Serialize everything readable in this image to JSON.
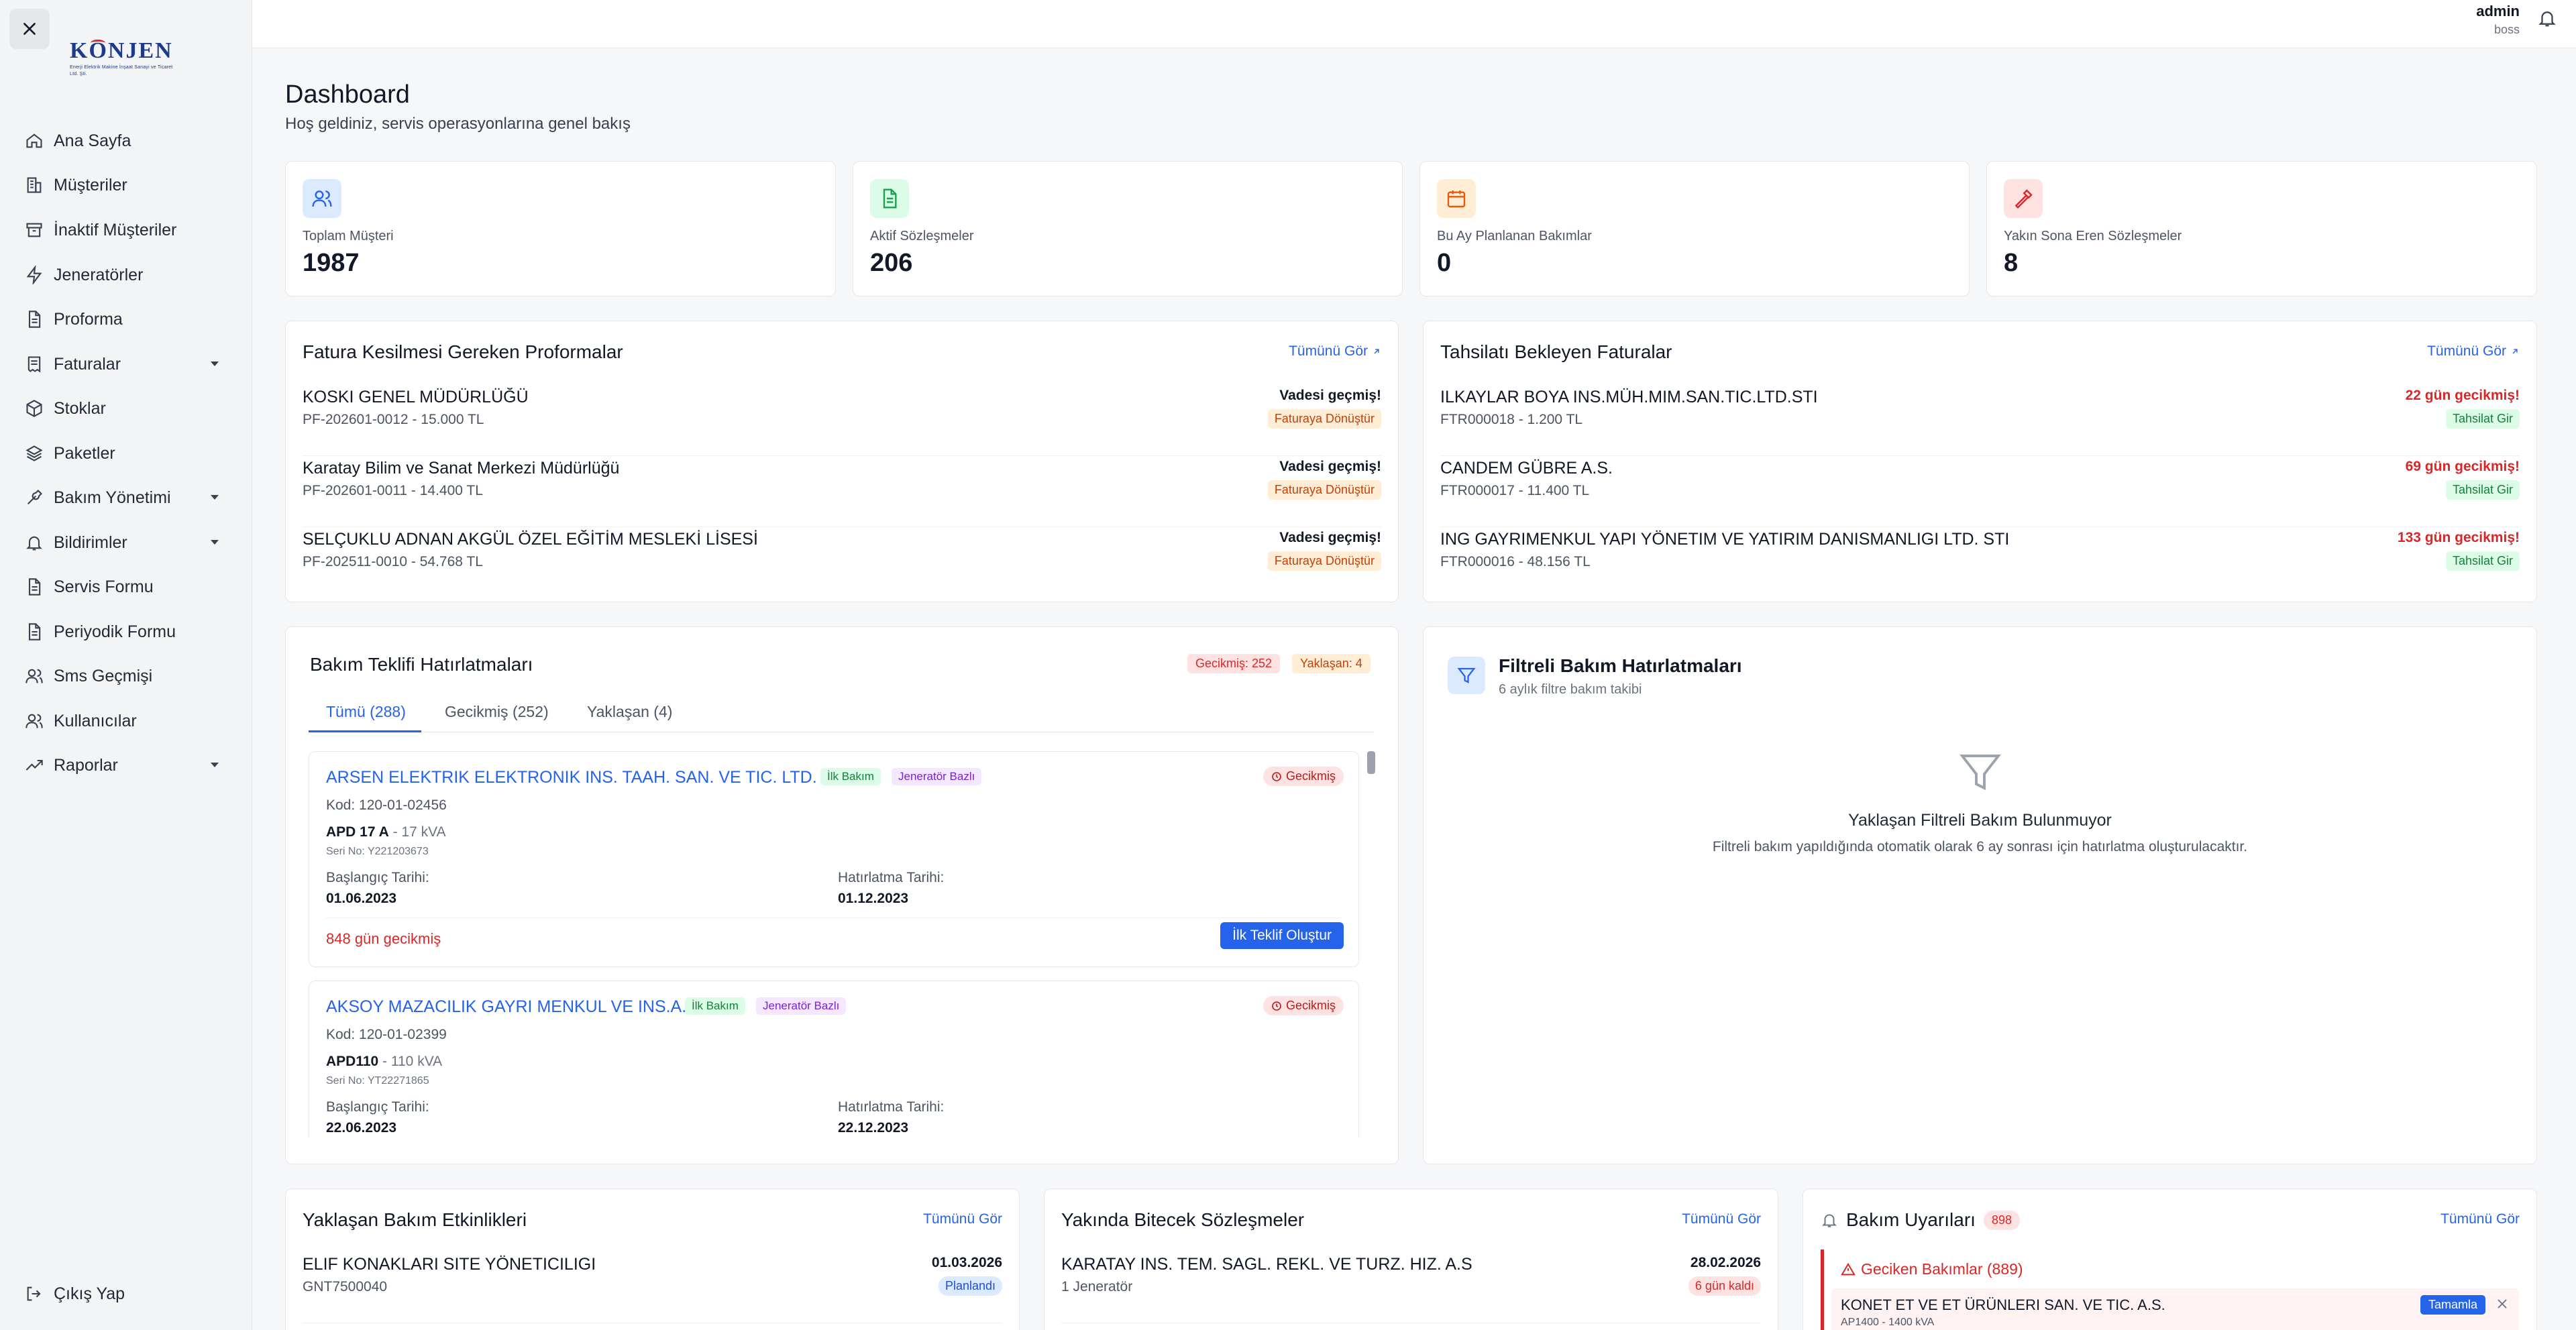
{
  "app": {
    "logo_text": "KONJEN",
    "logo_subtitle": "Enerji Elektrik Makine İnşaat Sanayi ve Ticaret Ltd. Şti."
  },
  "sidebar": {
    "items": [
      {
        "label": "Ana Sayfa",
        "icon": "home-icon"
      },
      {
        "label": "Müşteriler",
        "icon": "building-icon"
      },
      {
        "label": "İnaktif Müşteriler",
        "icon": "archive-icon"
      },
      {
        "label": "Jeneratörler",
        "icon": "bolt-icon"
      },
      {
        "label": "Proforma",
        "icon": "file-icon"
      },
      {
        "label": "Faturalar",
        "icon": "receipt-icon",
        "has_submenu": true
      },
      {
        "label": "Stoklar",
        "icon": "box-icon"
      },
      {
        "label": "Paketler",
        "icon": "layers-icon"
      },
      {
        "label": "Bakım Yönetimi",
        "icon": "wrench-icon",
        "has_submenu": true
      },
      {
        "label": "Bildirimler",
        "icon": "bell-icon",
        "has_submenu": true
      },
      {
        "label": "Servis Formu",
        "icon": "file-icon"
      },
      {
        "label": "Periyodik Formu",
        "icon": "file-icon"
      },
      {
        "label": "Sms Geçmişi",
        "icon": "users-icon"
      },
      {
        "label": "Kullanıcılar",
        "icon": "users-icon"
      },
      {
        "label": "Raporlar",
        "icon": "trend-icon",
        "has_submenu": true
      }
    ],
    "logout_label": "Çıkış Yap"
  },
  "header": {
    "user_name": "admin",
    "user_role": "boss"
  },
  "page": {
    "title": "Dashboard",
    "subtitle": "Hoş geldiniz, servis operasyonlarına genel bakış"
  },
  "stats": [
    {
      "label": "Toplam Müşteri",
      "value": "1987",
      "icon": "users-icon",
      "color": "#2563eb",
      "bg": "#dbeafe"
    },
    {
      "label": "Aktif Sözleşmeler",
      "value": "206",
      "icon": "document-icon",
      "color": "#16a34a",
      "bg": "#dcfce7"
    },
    {
      "label": "Bu Ay Planlanan Bakımlar",
      "value": "0",
      "icon": "calendar-icon",
      "color": "#ea580c",
      "bg": "#ffedd5"
    },
    {
      "label": "Yakın Sona Eren Sözleşmeler",
      "value": "8",
      "icon": "hammer-icon",
      "color": "#dc2626",
      "bg": "#fee2e2"
    }
  ],
  "proformas": {
    "title": "Fatura Kesilmesi Gereken Proformalar",
    "view_all": "Tümünü Gör",
    "rows": [
      {
        "name": "KOSKI GENEL MÜDÜRLÜĞÜ",
        "sub": "PF-202601-0012 - 15.000 TL",
        "status": "Vadesi geçmiş!",
        "badge": "Faturaya Dönüştür"
      },
      {
        "name": "Karatay Bilim ve Sanat Merkezi Müdürlüğü",
        "sub": "PF-202601-0011 - 14.400 TL",
        "status": "Vadesi geçmiş!",
        "badge": "Faturaya Dönüştür"
      },
      {
        "name": "SELÇUKLU ADNAN AKGÜL ÖZEL EĞİTİM MESLEKİ LİSESİ",
        "sub": "PF-202511-0010 - 54.768 TL",
        "status": "Vadesi geçmiş!",
        "badge": "Faturaya Dönüştür"
      }
    ]
  },
  "invoices": {
    "title": "Tahsilatı Bekleyen Faturalar",
    "view_all": "Tümünü Gör",
    "rows": [
      {
        "name": "ILKAYLAR BOYA INS.MÜH.MIM.SAN.TIC.LTD.STI",
        "sub": "FTR000018 - 1.200 TL",
        "status": "22 gün gecikmiş!",
        "badge": "Tahsilat Gir"
      },
      {
        "name": "CANDEM GÜBRE A.S.",
        "sub": "FTR000017 - 11.400 TL",
        "status": "69 gün gecikmiş!",
        "badge": "Tahsilat Gir"
      },
      {
        "name": "ING GAYRIMENKUL YAPI YÖNETIM VE YATIRIM DANISMANLIGI LTD. STI",
        "sub": "FTR000016 - 48.156 TL",
        "status": "133 gün gecikmiş!",
        "badge": "Tahsilat Gir"
      }
    ]
  },
  "reminders": {
    "title": "Bakım Teklifi Hatırlatmaları",
    "overdue_badge": "Gecikmiş: 252",
    "upcoming_badge": "Yaklaşan: 4",
    "tabs": [
      "Tümü (288)",
      "Gecikmiş (252)",
      "Yaklaşan (4)"
    ],
    "cards": [
      {
        "name": "ARSEN ELEKTRIK ELEKTRONIK INS. TAAH. SAN. VE TIC. LTD. STI",
        "tag1": "İlk Bakım",
        "tag2": "Jeneratör Bazlı",
        "status": "Gecikmiş",
        "code": "Kod: 120-01-02456",
        "model": "APD 17 A",
        "power": " - 17 kVA",
        "serial": "Seri No: Y221203673",
        "start_label": "Başlangıç Tarihi:",
        "start_value": "01.06.2023",
        "remind_label": "Hatırlatma Tarihi:",
        "remind_value": "01.12.2023",
        "overdue": "848 gün gecikmiş",
        "action": "İlk Teklif Oluştur"
      },
      {
        "name": "AKSOY MAZACILIK GAYRI MENKUL VE INS.A.S",
        "tag1": "İlk Bakım",
        "tag2": "Jeneratör Bazlı",
        "status": "Gecikmiş",
        "code": "Kod: 120-01-02399",
        "model": "APD110",
        "power": " - 110 kVA",
        "serial": "Seri No: YT22271865",
        "start_label": "Başlangıç Tarihi:",
        "start_value": "22.06.2023",
        "remind_label": "Hatırlatma Tarihi:",
        "remind_value": "22.12.2023"
      }
    ]
  },
  "filter_reminders": {
    "title": "Filtreli Bakım Hatırlatmaları",
    "subtitle": "6 aylık filtre bakım takibi",
    "empty_title": "Yaklaşan Filtreli Bakım Bulunmuyor",
    "empty_text": "Filtreli bakım yapıldığında otomatik olarak 6 ay sonrası için hatırlatma oluşturulacaktır."
  },
  "upcoming_events": {
    "title": "Yaklaşan Bakım Etkinlikleri",
    "view_all": "Tümünü Gör",
    "rows": [
      {
        "name": "ELIF KONAKLARI SITE YÖNETICILIGI",
        "sub": "GNT7500040",
        "date": "01.03.2026",
        "badge": "Planlandı"
      }
    ]
  },
  "ending_contracts": {
    "title": "Yakında Bitecek Sözleşmeler",
    "view_all": "Tümünü Gör",
    "rows": [
      {
        "name": "KARATAY INS. TEM. SAGL. REKL. VE TURZ. HIZ. A.S",
        "sub": "1 Jeneratör",
        "date": "28.02.2026",
        "badge": "6 gün kaldı"
      }
    ]
  },
  "maintenance_alerts": {
    "title": "Bakım Uyarıları",
    "count": "898",
    "view_all": "Tümünü Gör",
    "overdue_header": "Geciken Bakımlar (889)",
    "rows": [
      {
        "name": "KONET ET VE ET ÜRÜNLERI SAN. VE TIC. A.S.",
        "sub": "AP1400 - 1400 kVA",
        "action": "Tamamla"
      }
    ]
  }
}
